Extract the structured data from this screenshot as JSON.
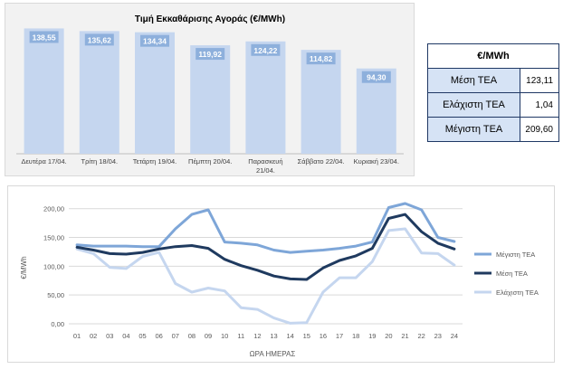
{
  "bar_chart": {
    "title": "Τιμή Εκκαθάρισης Αγοράς (€/MWh)",
    "bar_color": "#c5d6ef",
    "label_bg": "#8eb0dc"
  },
  "table": {
    "header": "€/MWh",
    "rows": [
      {
        "label": "Μέση ΤΕΑ",
        "value": "123,11"
      },
      {
        "label": "Ελάχιστη ΤΕΑ",
        "value": "1,04"
      },
      {
        "label": "Μέγιστη ΤΕΑ",
        "value": "209,60"
      }
    ],
    "header_border": "#1f3864",
    "label_bg": "#d6e3f5"
  },
  "line_chart": {
    "ylabel": "€/MWh",
    "xlabel": "ΩΡΑ ΗΜΕΡΑΣ"
  },
  "chart_data": [
    {
      "type": "bar",
      "title": "Τιμή Εκκαθάρισης Αγοράς (€/MWh)",
      "categories": [
        [
          "Δευτέρα 17/04."
        ],
        [
          "Τρίτη 18/04."
        ],
        [
          "Τετάρτη 19/04."
        ],
        [
          "Πέμπτη 20/04."
        ],
        [
          "Παρασκευή",
          "21/04."
        ],
        [
          "Σάββατο 22/04."
        ],
        [
          "Κυριακή 23/04."
        ]
      ],
      "values": [
        138.55,
        135.62,
        134.34,
        119.92,
        124.22,
        114.82,
        94.3
      ],
      "value_labels": [
        "138,55",
        "135,62",
        "134,34",
        "119,92",
        "124,22",
        "114,82",
        "94,30"
      ],
      "ylim": [
        0,
        150
      ],
      "grid": false,
      "legend": "none"
    },
    {
      "type": "line",
      "xlabel": "ΩΡΑ ΗΜΕΡΑΣ",
      "ylabel": "€/MWh",
      "x": [
        "01",
        "02",
        "03",
        "04",
        "05",
        "06",
        "07",
        "08",
        "09",
        "10",
        "11",
        "12",
        "13",
        "14",
        "15",
        "16",
        "17",
        "18",
        "19",
        "20",
        "21",
        "22",
        "23",
        "24"
      ],
      "yticks": [
        "0,00",
        "50,00",
        "100,00",
        "150,00",
        "200,00"
      ],
      "ylim": [
        0,
        220
      ],
      "grid": true,
      "legend": "right",
      "series": [
        {
          "name": "Μέγιστη ΤΕΑ",
          "color": "#7ea6d8",
          "values": [
            137,
            135,
            135,
            135,
            134,
            134,
            165,
            190,
            198,
            142,
            140,
            137,
            128,
            124,
            126,
            128,
            131,
            135,
            142,
            202,
            209,
            198,
            150,
            143
          ]
        },
        {
          "name": "Μέση ΤΕΑ",
          "color": "#1f3a5f",
          "values": [
            133,
            128,
            122,
            121,
            124,
            130,
            134,
            136,
            131,
            112,
            101,
            93,
            83,
            78,
            77,
            97,
            110,
            118,
            131,
            183,
            190,
            160,
            140,
            130
          ]
        },
        {
          "name": "Ελάχιστη ΤΕΑ",
          "color": "#c5d6ef",
          "values": [
            130,
            122,
            98,
            96,
            117,
            124,
            70,
            55,
            62,
            57,
            28,
            25,
            10,
            1,
            2,
            55,
            80,
            80,
            108,
            162,
            165,
            123,
            122,
            102
          ]
        }
      ]
    }
  ]
}
